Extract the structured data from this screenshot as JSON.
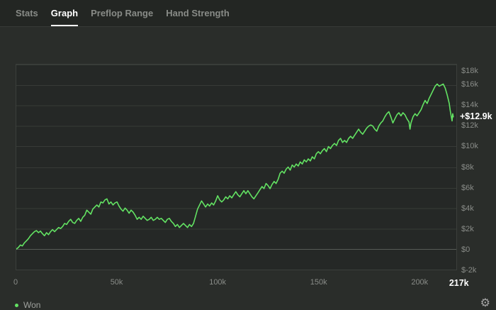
{
  "tabs": [
    {
      "label": "Stats",
      "active": false
    },
    {
      "label": "Graph",
      "active": true
    },
    {
      "label": "Preflop Range",
      "active": false
    },
    {
      "label": "Hand Strength",
      "active": false
    }
  ],
  "legend": {
    "series_label": "Won",
    "dot_color": "#63e363"
  },
  "footer": {
    "settings_icon_glyph": "⚙"
  },
  "colors": {
    "accent_green": "#63e363",
    "page_background": "#2a2d2a",
    "tabbar_background": "#232623",
    "plot_background": "#252826",
    "grid": "#373b37",
    "zero_line": "#575c57",
    "muted_text": "#898c88",
    "bright_text": "#ffffff"
  },
  "chart_data": {
    "type": "line",
    "title": "",
    "xlabel": "",
    "ylabel": "",
    "x_unit": "hands",
    "y_unit": "dollars_k",
    "xlim": [
      0,
      218.5
    ],
    "ylim": [
      -2,
      18
    ],
    "grid": "horizontal",
    "legend_position": "bottom-left",
    "final_value_label": "+$12.9k",
    "final_value_k": 12.9,
    "final_hands_k": 217,
    "y_ticks": [
      {
        "value": 18,
        "label": "$18k"
      },
      {
        "value": 16,
        "label": "$16k"
      },
      {
        "value": 14,
        "label": "$14k"
      },
      {
        "value": 12,
        "label": "$12k"
      },
      {
        "value": 10,
        "label": "$10k"
      },
      {
        "value": 8,
        "label": "$8k"
      },
      {
        "value": 6,
        "label": "$6k"
      },
      {
        "value": 4,
        "label": "$4k"
      },
      {
        "value": 2,
        "label": "$2k"
      },
      {
        "value": 0,
        "label": "$0"
      },
      {
        "value": -2,
        "label": "$-2k"
      }
    ],
    "x_ticks": [
      {
        "value": 0,
        "label": "0",
        "emphasis": false
      },
      {
        "value": 50,
        "label": "50k",
        "emphasis": false
      },
      {
        "value": 100,
        "label": "100k",
        "emphasis": false
      },
      {
        "value": 150,
        "label": "150k",
        "emphasis": false
      },
      {
        "value": 200,
        "label": "200k",
        "emphasis": false
      },
      {
        "value": 217,
        "label": "217k",
        "emphasis": true
      }
    ],
    "series": [
      {
        "name": "Won",
        "color": "#63e363",
        "points": [
          [
            0,
            0
          ],
          [
            1,
            0.15
          ],
          [
            2,
            0.4
          ],
          [
            3,
            0.3
          ],
          [
            4,
            0.6
          ],
          [
            5,
            0.8
          ],
          [
            6,
            1.0
          ],
          [
            7,
            1.3
          ],
          [
            8,
            1.5
          ],
          [
            9,
            1.7
          ],
          [
            10,
            1.8
          ],
          [
            11,
            1.6
          ],
          [
            12,
            1.75
          ],
          [
            13,
            1.5
          ],
          [
            14,
            1.3
          ],
          [
            15,
            1.6
          ],
          [
            16,
            1.4
          ],
          [
            17,
            1.7
          ],
          [
            18,
            1.9
          ],
          [
            19,
            1.7
          ],
          [
            20,
            1.9
          ],
          [
            21,
            2.1
          ],
          [
            22,
            2.0
          ],
          [
            23,
            2.2
          ],
          [
            24,
            2.5
          ],
          [
            25,
            2.4
          ],
          [
            26,
            2.7
          ],
          [
            27,
            2.9
          ],
          [
            28,
            2.6
          ],
          [
            29,
            2.5
          ],
          [
            30,
            2.8
          ],
          [
            31,
            3.0
          ],
          [
            32,
            2.7
          ],
          [
            33,
            3.1
          ],
          [
            34,
            3.3
          ],
          [
            35,
            3.8
          ],
          [
            36,
            3.6
          ],
          [
            37,
            3.4
          ],
          [
            38,
            3.9
          ],
          [
            39,
            4.1
          ],
          [
            40,
            4.3
          ],
          [
            41,
            4.1
          ],
          [
            42,
            4.6
          ],
          [
            43,
            4.5
          ],
          [
            44,
            4.8
          ],
          [
            45,
            4.9
          ],
          [
            46,
            4.4
          ],
          [
            47,
            4.6
          ],
          [
            48,
            4.3
          ],
          [
            49,
            4.5
          ],
          [
            50,
            4.6
          ],
          [
            51,
            4.2
          ],
          [
            52,
            3.9
          ],
          [
            53,
            3.7
          ],
          [
            54,
            4.0
          ],
          [
            55,
            3.8
          ],
          [
            56,
            3.5
          ],
          [
            57,
            3.8
          ],
          [
            58,
            3.6
          ],
          [
            59,
            3.3
          ],
          [
            60,
            2.9
          ],
          [
            61,
            3.1
          ],
          [
            62,
            2.9
          ],
          [
            63,
            3.2
          ],
          [
            64,
            3.0
          ],
          [
            65,
            2.8
          ],
          [
            66,
            2.9
          ],
          [
            67,
            3.1
          ],
          [
            68,
            2.8
          ],
          [
            69,
            2.9
          ],
          [
            70,
            3.1
          ],
          [
            71,
            2.9
          ],
          [
            72,
            3.0
          ],
          [
            73,
            2.8
          ],
          [
            74,
            2.6
          ],
          [
            75,
            2.9
          ],
          [
            76,
            3.0
          ],
          [
            77,
            2.7
          ],
          [
            78,
            2.5
          ],
          [
            79,
            2.2
          ],
          [
            80,
            2.4
          ],
          [
            81,
            2.1
          ],
          [
            82,
            2.3
          ],
          [
            83,
            2.5
          ],
          [
            84,
            2.3
          ],
          [
            85,
            2.1
          ],
          [
            86,
            2.4
          ],
          [
            87,
            2.2
          ],
          [
            88,
            2.5
          ],
          [
            89,
            3.2
          ],
          [
            90,
            3.9
          ],
          [
            91,
            4.3
          ],
          [
            92,
            4.7
          ],
          [
            93,
            4.4
          ],
          [
            94,
            4.1
          ],
          [
            95,
            4.4
          ],
          [
            96,
            4.2
          ],
          [
            97,
            4.5
          ],
          [
            98,
            4.3
          ],
          [
            99,
            4.7
          ],
          [
            100,
            5.2
          ],
          [
            101,
            4.8
          ],
          [
            102,
            4.6
          ],
          [
            103,
            4.8
          ],
          [
            104,
            5.1
          ],
          [
            105,
            4.9
          ],
          [
            106,
            5.2
          ],
          [
            107,
            5.0
          ],
          [
            108,
            5.3
          ],
          [
            109,
            5.6
          ],
          [
            110,
            5.3
          ],
          [
            111,
            5.1
          ],
          [
            112,
            5.4
          ],
          [
            113,
            5.7
          ],
          [
            114,
            5.4
          ],
          [
            115,
            5.7
          ],
          [
            116,
            5.4
          ],
          [
            117,
            5.1
          ],
          [
            118,
            4.9
          ],
          [
            119,
            5.2
          ],
          [
            120,
            5.5
          ],
          [
            121,
            5.8
          ],
          [
            122,
            6.1
          ],
          [
            123,
            5.9
          ],
          [
            124,
            6.4
          ],
          [
            125,
            6.2
          ],
          [
            126,
            5.9
          ],
          [
            127,
            6.3
          ],
          [
            128,
            6.6
          ],
          [
            129,
            6.4
          ],
          [
            130,
            6.8
          ],
          [
            131,
            7.4
          ],
          [
            132,
            7.6
          ],
          [
            133,
            7.4
          ],
          [
            134,
            7.8
          ],
          [
            135,
            8.0
          ],
          [
            136,
            7.7
          ],
          [
            137,
            8.2
          ],
          [
            138,
            8.0
          ],
          [
            139,
            8.3
          ],
          [
            140,
            8.1
          ],
          [
            141,
            8.5
          ],
          [
            142,
            8.3
          ],
          [
            143,
            8.7
          ],
          [
            144,
            8.5
          ],
          [
            145,
            8.8
          ],
          [
            146,
            8.6
          ],
          [
            147,
            9.0
          ],
          [
            148,
            8.8
          ],
          [
            149,
            9.3
          ],
          [
            150,
            9.5
          ],
          [
            151,
            9.3
          ],
          [
            152,
            9.6
          ],
          [
            153,
            9.8
          ],
          [
            154,
            9.5
          ],
          [
            155,
            10.0
          ],
          [
            156,
            9.8
          ],
          [
            157,
            10.1
          ],
          [
            158,
            10.3
          ],
          [
            159,
            10.1
          ],
          [
            160,
            10.6
          ],
          [
            161,
            10.8
          ],
          [
            162,
            10.4
          ],
          [
            163,
            10.6
          ],
          [
            164,
            10.4
          ],
          [
            165,
            10.8
          ],
          [
            166,
            11.0
          ],
          [
            167,
            10.8
          ],
          [
            168,
            11.1
          ],
          [
            169,
            11.4
          ],
          [
            170,
            11.7
          ],
          [
            171,
            11.4
          ],
          [
            172,
            11.2
          ],
          [
            173,
            11.5
          ],
          [
            174,
            11.8
          ],
          [
            175,
            12.0
          ],
          [
            176,
            12.1
          ],
          [
            177,
            12.0
          ],
          [
            178,
            11.7
          ],
          [
            179,
            11.5
          ],
          [
            180,
            12.0
          ],
          [
            181,
            12.3
          ],
          [
            182,
            12.5
          ],
          [
            183,
            12.9
          ],
          [
            184,
            13.2
          ],
          [
            185,
            13.4
          ],
          [
            186,
            12.9
          ],
          [
            187,
            12.3
          ],
          [
            188,
            12.7
          ],
          [
            189,
            13.1
          ],
          [
            190,
            13.3
          ],
          [
            191,
            13.0
          ],
          [
            192,
            13.3
          ],
          [
            193,
            13.1
          ],
          [
            194,
            12.7
          ],
          [
            195,
            12.4
          ],
          [
            195.5,
            11.7
          ],
          [
            196,
            12.3
          ],
          [
            197,
            12.9
          ],
          [
            198,
            13.2
          ],
          [
            199,
            13.0
          ],
          [
            200,
            13.3
          ],
          [
            201,
            13.6
          ],
          [
            202,
            14.1
          ],
          [
            203,
            14.5
          ],
          [
            204,
            14.2
          ],
          [
            205,
            14.7
          ],
          [
            206,
            15.1
          ],
          [
            207,
            15.5
          ],
          [
            208,
            15.9
          ],
          [
            209,
            16.1
          ],
          [
            210,
            15.9
          ],
          [
            211,
            16.0
          ],
          [
            212,
            16.1
          ],
          [
            213,
            15.7
          ],
          [
            214,
            15.0
          ],
          [
            215,
            14.2
          ],
          [
            215.5,
            13.5
          ],
          [
            216,
            12.9
          ],
          [
            216.4,
            12.5
          ],
          [
            216.7,
            13.2
          ],
          [
            217,
            12.9
          ]
        ]
      }
    ]
  }
}
